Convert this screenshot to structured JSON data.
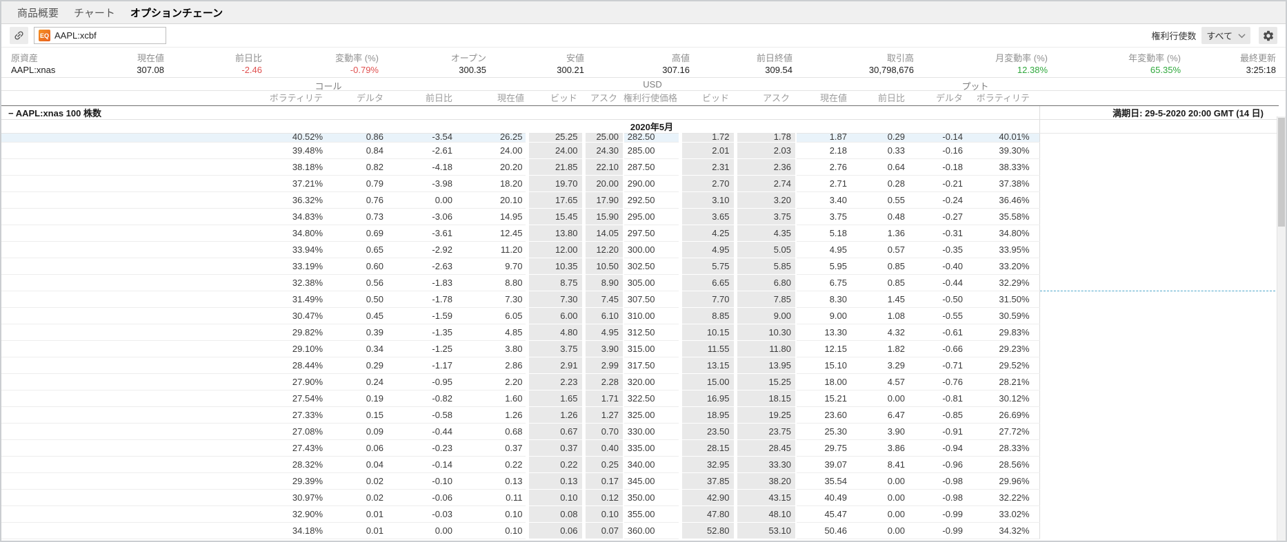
{
  "tabs": {
    "items": [
      {
        "label": "商品概要",
        "active": false
      },
      {
        "label": "チャート",
        "active": false
      },
      {
        "label": "オプションチェーン",
        "active": true
      }
    ]
  },
  "toolbar": {
    "instrument_badge": "EQ",
    "instrument_value": "AAPL:xcbf",
    "strikes_label": "権利行使数",
    "strikes_dropdown_value": "すべて"
  },
  "stats": {
    "items": [
      {
        "label": "原資産",
        "value": "AAPL:xnas",
        "color": null
      },
      {
        "label": "現在値",
        "value": "307.08",
        "color": null
      },
      {
        "label": "前日比",
        "value": "-2.46",
        "color": "red"
      },
      {
        "label": "変動率 (%)",
        "value": "-0.79%",
        "color": "red"
      },
      {
        "label": "オープン",
        "value": "300.35",
        "color": null
      },
      {
        "label": "安値",
        "value": "300.21",
        "color": null
      },
      {
        "label": "高値",
        "value": "307.16",
        "color": null
      },
      {
        "label": "前日終値",
        "value": "309.54",
        "color": null
      },
      {
        "label": "取引高",
        "value": "30,798,676",
        "color": null
      },
      {
        "label": "月変動率 (%)",
        "value": "12.38%",
        "color": "green"
      },
      {
        "label": "年変動率 (%)",
        "value": "65.35%",
        "color": "green"
      },
      {
        "label": "最終更新",
        "value": "3:25:18",
        "color": null
      }
    ]
  },
  "option_chain": {
    "group_headers": {
      "call": "コール",
      "currency": "USD",
      "put": "プット"
    },
    "column_headers": [
      "ボラティリテ",
      "デルタ",
      "前日比",
      "現在値",
      "ビッド",
      "アスク",
      "権利行使価格",
      "ビッド",
      "アスク",
      "現在値",
      "前日比",
      "デルタ",
      "ボラティリテ"
    ],
    "instrument_row": {
      "collapse_icon": "−",
      "name": "AAPL:xnas 100 株数",
      "expiry": "満期日: 29-5-2020 20:00 GMT (14 日)"
    },
    "month_label": "2020年5月",
    "atm_divider_before_strike": "307.50",
    "clipped_top_row": [
      "40.52%",
      "0.86",
      "-3.54",
      "26.25",
      "25.25",
      "25.00",
      "282.50",
      "1.72",
      "1.78",
      "1.87",
      "0.29",
      "-0.14",
      "40.01%"
    ],
    "rows": [
      [
        "39.48%",
        "0.84",
        "-2.61",
        "24.00",
        "24.00",
        "24.30",
        "285.00",
        "2.01",
        "2.03",
        "2.18",
        "0.33",
        "-0.16",
        "39.30%"
      ],
      [
        "38.18%",
        "0.82",
        "-4.18",
        "20.20",
        "21.85",
        "22.10",
        "287.50",
        "2.31",
        "2.36",
        "2.76",
        "0.64",
        "-0.18",
        "38.33%"
      ],
      [
        "37.21%",
        "0.79",
        "-3.98",
        "18.20",
        "19.70",
        "20.00",
        "290.00",
        "2.70",
        "2.74",
        "2.71",
        "0.28",
        "-0.21",
        "37.38%"
      ],
      [
        "36.32%",
        "0.76",
        "0.00",
        "20.10",
        "17.65",
        "17.90",
        "292.50",
        "3.10",
        "3.20",
        "3.40",
        "0.55",
        "-0.24",
        "36.46%"
      ],
      [
        "34.83%",
        "0.73",
        "-3.06",
        "14.95",
        "15.45",
        "15.90",
        "295.00",
        "3.65",
        "3.75",
        "3.75",
        "0.48",
        "-0.27",
        "35.58%"
      ],
      [
        "34.80%",
        "0.69",
        "-3.61",
        "12.45",
        "13.80",
        "14.05",
        "297.50",
        "4.25",
        "4.35",
        "5.18",
        "1.36",
        "-0.31",
        "34.80%"
      ],
      [
        "33.94%",
        "0.65",
        "-2.92",
        "11.20",
        "12.00",
        "12.20",
        "300.00",
        "4.95",
        "5.05",
        "4.95",
        "0.57",
        "-0.35",
        "33.95%"
      ],
      [
        "33.19%",
        "0.60",
        "-2.63",
        "9.70",
        "10.35",
        "10.50",
        "302.50",
        "5.75",
        "5.85",
        "5.95",
        "0.85",
        "-0.40",
        "33.20%"
      ],
      [
        "32.38%",
        "0.56",
        "-1.83",
        "8.80",
        "8.75",
        "8.90",
        "305.00",
        "6.65",
        "6.80",
        "6.75",
        "0.85",
        "-0.44",
        "32.29%"
      ],
      [
        "31.49%",
        "0.50",
        "-1.78",
        "7.30",
        "7.30",
        "7.45",
        "307.50",
        "7.70",
        "7.85",
        "8.30",
        "1.45",
        "-0.50",
        "31.50%"
      ],
      [
        "30.47%",
        "0.45",
        "-1.59",
        "6.05",
        "6.00",
        "6.10",
        "310.00",
        "8.85",
        "9.00",
        "9.00",
        "1.08",
        "-0.55",
        "30.59%"
      ],
      [
        "29.82%",
        "0.39",
        "-1.35",
        "4.85",
        "4.80",
        "4.95",
        "312.50",
        "10.15",
        "10.30",
        "13.30",
        "4.32",
        "-0.61",
        "29.83%"
      ],
      [
        "29.10%",
        "0.34",
        "-1.25",
        "3.80",
        "3.75",
        "3.90",
        "315.00",
        "11.55",
        "11.80",
        "12.15",
        "1.82",
        "-0.66",
        "29.23%"
      ],
      [
        "28.44%",
        "0.29",
        "-1.17",
        "2.86",
        "2.91",
        "2.99",
        "317.50",
        "13.15",
        "13.95",
        "15.10",
        "3.29",
        "-0.71",
        "29.52%"
      ],
      [
        "27.90%",
        "0.24",
        "-0.95",
        "2.20",
        "2.23",
        "2.28",
        "320.00",
        "15.00",
        "15.25",
        "18.00",
        "4.57",
        "-0.76",
        "28.21%"
      ],
      [
        "27.54%",
        "0.19",
        "-0.82",
        "1.60",
        "1.65",
        "1.71",
        "322.50",
        "16.95",
        "18.15",
        "15.21",
        "0.00",
        "-0.81",
        "30.12%"
      ],
      [
        "27.33%",
        "0.15",
        "-0.58",
        "1.26",
        "1.26",
        "1.27",
        "325.00",
        "18.95",
        "19.25",
        "23.60",
        "6.47",
        "-0.85",
        "26.69%"
      ],
      [
        "27.08%",
        "0.09",
        "-0.44",
        "0.68",
        "0.67",
        "0.70",
        "330.00",
        "23.50",
        "23.75",
        "25.30",
        "3.90",
        "-0.91",
        "27.72%"
      ],
      [
        "27.43%",
        "0.06",
        "-0.23",
        "0.37",
        "0.37",
        "0.40",
        "335.00",
        "28.15",
        "28.45",
        "29.75",
        "3.86",
        "-0.94",
        "28.33%"
      ],
      [
        "28.32%",
        "0.04",
        "-0.14",
        "0.22",
        "0.22",
        "0.25",
        "340.00",
        "32.95",
        "33.30",
        "39.07",
        "8.41",
        "-0.96",
        "28.56%"
      ],
      [
        "29.39%",
        "0.02",
        "-0.10",
        "0.13",
        "0.13",
        "0.17",
        "345.00",
        "37.85",
        "38.20",
        "35.54",
        "0.00",
        "-0.98",
        "29.96%"
      ],
      [
        "30.97%",
        "0.02",
        "-0.06",
        "0.11",
        "0.10",
        "0.12",
        "350.00",
        "42.90",
        "43.15",
        "40.49",
        "0.00",
        "-0.98",
        "32.22%"
      ],
      [
        "32.90%",
        "0.01",
        "-0.03",
        "0.10",
        "0.08",
        "0.10",
        "355.00",
        "47.80",
        "48.10",
        "45.47",
        "0.00",
        "-0.99",
        "33.02%"
      ],
      [
        "34.18%",
        "0.01",
        "0.00",
        "0.10",
        "0.06",
        "0.07",
        "360.00",
        "52.80",
        "53.10",
        "50.46",
        "0.00",
        "-0.99",
        "34.32%"
      ]
    ]
  },
  "colors": {
    "negative": "#e0504f",
    "positive": "#2fa83c",
    "badge_orange": "#ee7623",
    "atm_line": "#4da7cb",
    "shaded_cell": "#e9e9e9"
  }
}
